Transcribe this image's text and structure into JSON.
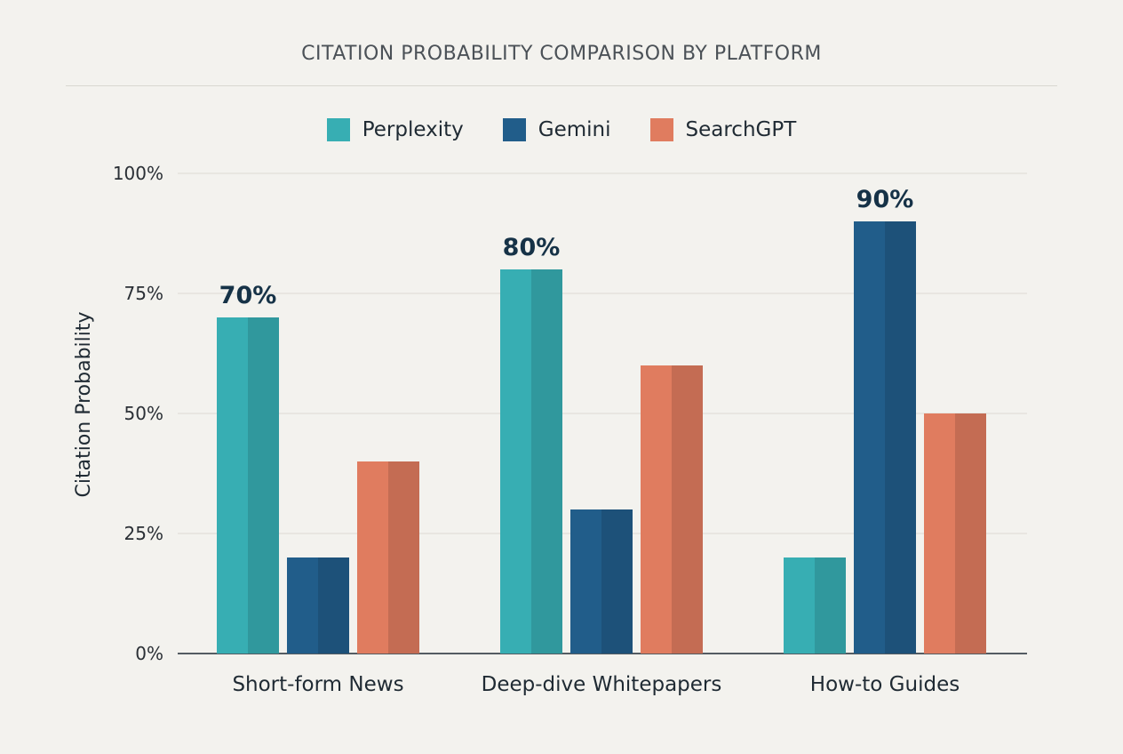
{
  "chart_data": {
    "type": "bar",
    "title": "CITATION PROBABILITY COMPARISON BY PLATFORM",
    "ylabel": "Citation Probability",
    "xlabel": "",
    "ylim": [
      0,
      100
    ],
    "yticks": [
      0,
      25,
      50,
      75,
      100
    ],
    "ytick_labels": [
      "0%",
      "25%",
      "50%",
      "75%",
      "100%"
    ],
    "grid": true,
    "legend_position": "top-center",
    "categories": [
      "Short-form News",
      "Deep-dive Whitepapers",
      "How-to Guides"
    ],
    "series": [
      {
        "name": "Perplexity",
        "values": [
          70,
          80,
          20
        ],
        "color": "#37aeb3"
      },
      {
        "name": "Gemini",
        "values": [
          20,
          30,
          90
        ],
        "color": "#215d8a"
      },
      {
        "name": "SearchGPT",
        "values": [
          40,
          60,
          50
        ],
        "color": "#e07c5f"
      }
    ],
    "data_labels": [
      {
        "category": "Short-form News",
        "series": "Perplexity",
        "text": "70%"
      },
      {
        "category": "Deep-dive Whitepapers",
        "series": "Perplexity",
        "text": "80%"
      },
      {
        "category": "How-to Guides",
        "series": "Gemini",
        "text": "90%"
      }
    ]
  }
}
